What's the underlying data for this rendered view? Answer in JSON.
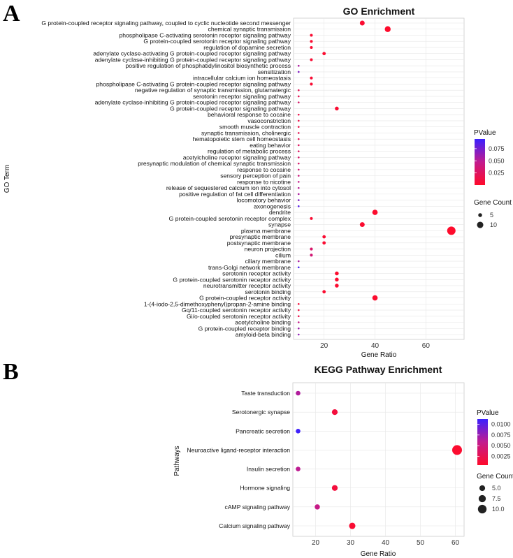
{
  "panels": {
    "a": "A",
    "b": "B"
  },
  "chart_data": [
    {
      "type": "scatter",
      "title": "GO Enrichment",
      "xlabel": "Gene Ratio",
      "ylabel": "GO Term",
      "xlim": [
        8,
        75
      ],
      "xticks": [
        20,
        40,
        60
      ],
      "legend_color_title": "PValue",
      "legend_color_ticks": [
        "0.075",
        "0.050",
        "0.025"
      ],
      "legend_color_tick_values": [
        0.075,
        0.05,
        0.025
      ],
      "color_range": [
        0.0,
        0.095
      ],
      "legend_size_title": "Gene Count",
      "legend_size_ticks": [
        "5",
        "10"
      ],
      "legend_size_tick_values": [
        5,
        10
      ],
      "size_range": [
        1,
        14
      ],
      "points": [
        {
          "term": "G protein-coupled receptor signaling pathway, coupled to cyclic nucleotide second messenger",
          "x": 35,
          "count": 7,
          "p": 0.004
        },
        {
          "term": "chemical synaptic transmission",
          "x": 45,
          "count": 9,
          "p": 0.001
        },
        {
          "term": "phospholipase C-activating serotonin receptor signaling pathway",
          "x": 15,
          "count": 3,
          "p": 0.004
        },
        {
          "term": "G protein-coupled serotonin receptor signaling pathway",
          "x": 15,
          "count": 3,
          "p": 0.004
        },
        {
          "term": "regulation of dopamine secretion",
          "x": 15,
          "count": 3,
          "p": 0.004
        },
        {
          "term": "adenylate cyclase-activating G protein-coupled receptor signaling pathway",
          "x": 20,
          "count": 4,
          "p": 0.003
        },
        {
          "term": "adenylate cyclase-inhibiting G protein-coupled receptor signaling pathway",
          "x": 15,
          "count": 3,
          "p": 0.005
        },
        {
          "term": "positive regulation of phosphatidylinositol biosynthetic process",
          "x": 10,
          "count": 1,
          "p": 0.055
        },
        {
          "term": "sensitization",
          "x": 10,
          "count": 1,
          "p": 0.07
        },
        {
          "term": "intracellular calcium ion homeostasis",
          "x": 15,
          "count": 3,
          "p": 0.005
        },
        {
          "term": "phospholipase C-activating G protein-coupled receptor signaling pathway",
          "x": 15,
          "count": 3,
          "p": 0.005
        },
        {
          "term": "negative regulation of synaptic transmission, glutamatergic",
          "x": 10,
          "count": 1,
          "p": 0.02
        },
        {
          "term": "serotonin receptor signaling pathway",
          "x": 10,
          "count": 1,
          "p": 0.02
        },
        {
          "term": "adenylate cyclase-inhibiting G protein-coupled receptor signaling pathway",
          "x": 10,
          "count": 1,
          "p": 0.03
        },
        {
          "term": "G protein-coupled receptor signaling pathway",
          "x": 25,
          "count": 5,
          "p": 0.004
        },
        {
          "term": "behavioral response to cocaine",
          "x": 10,
          "count": 1,
          "p": 0.015
        },
        {
          "term": "vasoconstriction",
          "x": 10,
          "count": 1,
          "p": 0.015
        },
        {
          "term": "smooth muscle contraction",
          "x": 10,
          "count": 1,
          "p": 0.015
        },
        {
          "term": "synaptic transmission, cholinergic",
          "x": 10,
          "count": 1,
          "p": 0.02
        },
        {
          "term": "hematopoietic stem cell homeostasis",
          "x": 10,
          "count": 1,
          "p": 0.02
        },
        {
          "term": "eating behavior",
          "x": 10,
          "count": 1,
          "p": 0.025
        },
        {
          "term": "regulation of metabolic process",
          "x": 10,
          "count": 1,
          "p": 0.025
        },
        {
          "term": "acetylcholine receptor signaling pathway",
          "x": 10,
          "count": 1,
          "p": 0.03
        },
        {
          "term": "presynaptic modulation of chemical synaptic transmission",
          "x": 10,
          "count": 1,
          "p": 0.03
        },
        {
          "term": "response to cocaine",
          "x": 10,
          "count": 1,
          "p": 0.035
        },
        {
          "term": "sensory perception of pain",
          "x": 10,
          "count": 1,
          "p": 0.04
        },
        {
          "term": "response to nicotine",
          "x": 10,
          "count": 1,
          "p": 0.045
        },
        {
          "term": "release of sequestered calcium ion into cytosol",
          "x": 10,
          "count": 1,
          "p": 0.05
        },
        {
          "term": "positive regulation of fat cell differentiation",
          "x": 10,
          "count": 1,
          "p": 0.055
        },
        {
          "term": "locomotory behavior",
          "x": 10,
          "count": 1,
          "p": 0.07
        },
        {
          "term": "axonogenesis",
          "x": 10,
          "count": 1,
          "p": 0.085
        },
        {
          "term": "dendrite",
          "x": 40,
          "count": 8,
          "p": 0.002
        },
        {
          "term": "G protein-coupled serotonin receptor complex",
          "x": 15,
          "count": 3,
          "p": 0.004
        },
        {
          "term": "synapse",
          "x": 35,
          "count": 7,
          "p": 0.003
        },
        {
          "term": "plasma membrane",
          "x": 70,
          "count": 14,
          "p": 0.001
        },
        {
          "term": "presynaptic membrane",
          "x": 20,
          "count": 4,
          "p": 0.004
        },
        {
          "term": "postsynaptic membrane",
          "x": 20,
          "count": 4,
          "p": 0.004
        },
        {
          "term": "neuron projection",
          "x": 15,
          "count": 3,
          "p": 0.03
        },
        {
          "term": "cilium",
          "x": 15,
          "count": 3,
          "p": 0.035
        },
        {
          "term": "ciliary membrane",
          "x": 10,
          "count": 1,
          "p": 0.055
        },
        {
          "term": "trans-Golgi network membrane",
          "x": 10,
          "count": 1,
          "p": 0.09
        },
        {
          "term": "serotonin receptor activity",
          "x": 25,
          "count": 5,
          "p": 0.002
        },
        {
          "term": "G protein-coupled serotonin receptor activity",
          "x": 25,
          "count": 5,
          "p": 0.002
        },
        {
          "term": "neurotransmitter receptor activity",
          "x": 25,
          "count": 5,
          "p": 0.003
        },
        {
          "term": "serotonin binding",
          "x": 20,
          "count": 4,
          "p": 0.003
        },
        {
          "term": "G protein-coupled receptor activity",
          "x": 40,
          "count": 8,
          "p": 0.002
        },
        {
          "term": "1-(4-iodo-2,5-dimethoxyphenyl)propan-2-amine binding",
          "x": 10,
          "count": 1,
          "p": 0.008
        },
        {
          "term": "Gq/11-coupled serotonin receptor activity",
          "x": 10,
          "count": 1,
          "p": 0.01
        },
        {
          "term": "Gi/o-coupled serotonin receptor activity",
          "x": 10,
          "count": 1,
          "p": 0.015
        },
        {
          "term": "acetylcholine binding",
          "x": 10,
          "count": 1,
          "p": 0.045
        },
        {
          "term": "G protein-coupled receptor binding",
          "x": 10,
          "count": 1,
          "p": 0.06
        },
        {
          "term": "amyloid-beta binding",
          "x": 10,
          "count": 1,
          "p": 0.065
        }
      ]
    },
    {
      "type": "scatter",
      "title": "KEGG Pathway Enrichment",
      "xlabel": "Gene Ratio",
      "ylabel": "Pathways",
      "xlim": [
        13.5,
        62.5
      ],
      "xticks": [
        20,
        30,
        40,
        50,
        60
      ],
      "legend_color_title": "PValue",
      "legend_color_ticks": [
        "0.0100",
        "0.0075",
        "0.0050",
        "0.0025"
      ],
      "legend_color_tick_values": [
        0.01,
        0.0075,
        0.005,
        0.0025
      ],
      "color_range": [
        0.0005,
        0.0112
      ],
      "legend_size_title": "Gene Count",
      "legend_size_ticks": [
        "5.0",
        "7.5",
        "10.0"
      ],
      "legend_size_tick_values": [
        5.0,
        7.5,
        10.0
      ],
      "size_range": [
        3,
        12
      ],
      "points": [
        {
          "term": "Taste transduction",
          "x": 15,
          "count": 3,
          "p": 0.0065
        },
        {
          "term": "Serotonergic synapse",
          "x": 25.5,
          "count": 5,
          "p": 0.0015
        },
        {
          "term": "Pancreatic secretion",
          "x": 15,
          "count": 3,
          "p": 0.011
        },
        {
          "term": "Neuroactive ligand-receptor interaction",
          "x": 60.5,
          "count": 12,
          "p": 0.0008
        },
        {
          "term": "Insulin secretion",
          "x": 15,
          "count": 3,
          "p": 0.006
        },
        {
          "term": "Hormone signaling",
          "x": 25.5,
          "count": 5,
          "p": 0.0015
        },
        {
          "term": "cAMP signaling pathway",
          "x": 20.5,
          "count": 4,
          "p": 0.0055
        },
        {
          "term": "Calcium signaling pathway",
          "x": 30.5,
          "count": 6,
          "p": 0.001
        }
      ]
    }
  ]
}
